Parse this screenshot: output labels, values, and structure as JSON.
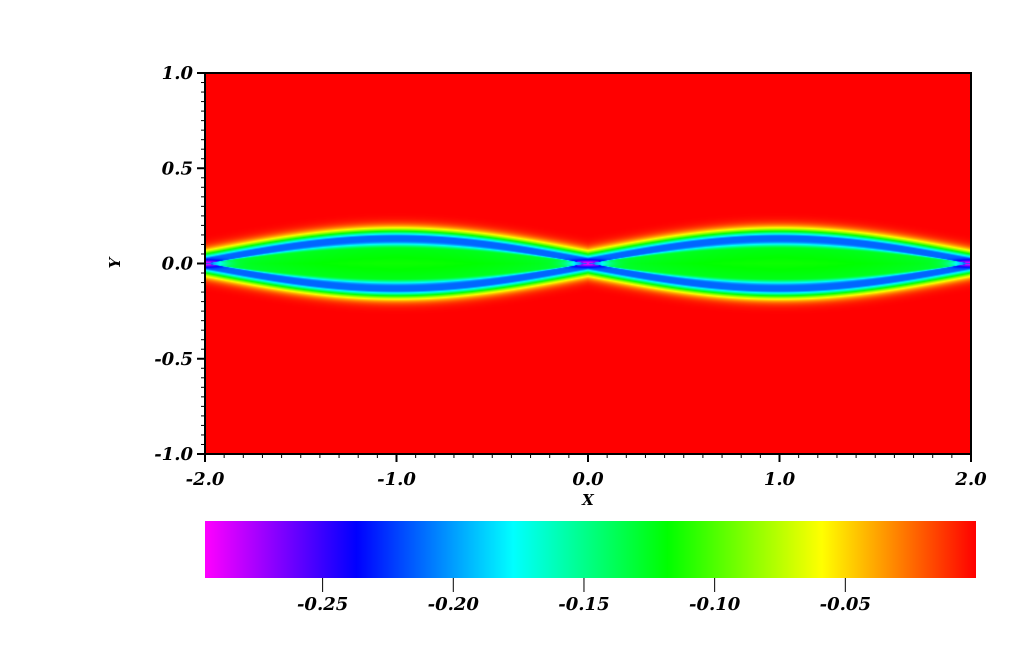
{
  "chart_data": {
    "type": "heatmap",
    "title": "",
    "xlabel": "X",
    "ylabel": "Y",
    "xlim": [
      -2.0,
      2.0
    ],
    "ylim": [
      -1.0,
      1.0
    ],
    "x_ticks": [
      -2.0,
      -1.0,
      0.0,
      1.0,
      2.0
    ],
    "x_tick_labels": [
      "-2.0",
      "-1.0",
      "0.0",
      "1.0",
      "2.0"
    ],
    "y_ticks": [
      -1.0,
      -0.5,
      0.0,
      0.5,
      1.0
    ],
    "y_tick_labels": [
      "-1.0",
      "-0.5",
      "0.0",
      "0.5",
      "1.0"
    ],
    "field_description": "value ≈ 0 (red) everywhere except a thin band around Y=0; band forms cat's-eye islands centered at X=±1 with interior ≈ -0.13 (green/cyan), rim ≈ -0.21 (blue), X-points at X=-2, 0, 2 with minimum ≈ -0.29 (magenta)",
    "field_extrema": {
      "min": -0.29,
      "max": 0.0
    },
    "island_centers_x": [
      -1.0,
      1.0
    ],
    "x_points_x": [
      -2.0,
      0.0,
      2.0
    ],
    "band_half_width_y": [
      0.1,
      0.22
    ],
    "colorbar": {
      "orientation": "horizontal",
      "range": [
        -0.295,
        0.0
      ],
      "ticks": [
        -0.25,
        -0.2,
        -0.15,
        -0.1,
        -0.05
      ],
      "tick_labels": [
        "-0.25",
        "-0.20",
        "-0.15",
        "-0.10",
        "-0.05"
      ],
      "colormap": [
        {
          "value": -0.295,
          "color": "#ff00ff"
        },
        {
          "value": -0.237,
          "color": "#0000ff"
        },
        {
          "value": -0.177,
          "color": "#00ffff"
        },
        {
          "value": -0.118,
          "color": "#00ff00"
        },
        {
          "value": -0.059,
          "color": "#ffff00"
        },
        {
          "value": 0.0,
          "color": "#ff0000"
        }
      ]
    }
  }
}
